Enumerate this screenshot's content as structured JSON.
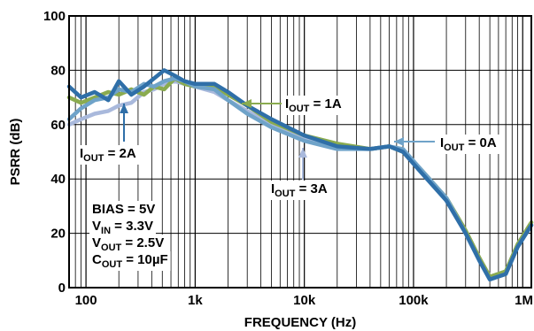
{
  "chart_data": {
    "type": "line",
    "xlabel": "FREQUENCY (Hz)",
    "ylabel": "PSRR (dB)",
    "xscale": "log",
    "xlim": [
      70,
      1200000
    ],
    "ylim": [
      0,
      100
    ],
    "grid": true,
    "x_ticks": [
      {
        "value": 100,
        "label": "100"
      },
      {
        "value": 1000,
        "label": "1k"
      },
      {
        "value": 10000,
        "label": "10k"
      },
      {
        "value": 100000,
        "label": "100k"
      },
      {
        "value": 1000000,
        "label": "1M"
      }
    ],
    "y_ticks": [
      {
        "value": 0,
        "label": "0"
      },
      {
        "value": 20,
        "label": "20"
      },
      {
        "value": 40,
        "label": "40"
      },
      {
        "value": 60,
        "label": "60"
      },
      {
        "value": 80,
        "label": "80"
      },
      {
        "value": 100,
        "label": "100"
      }
    ],
    "series": [
      {
        "name": "IOUT = 0A",
        "color": "#6fa3c9",
        "x": [
          70,
          90,
          120,
          160,
          200,
          260,
          340,
          420,
          520,
          650,
          800,
          1000,
          1500,
          2000,
          3000,
          5000,
          10000,
          20000,
          40000,
          60000,
          80000,
          120000,
          200000,
          300000,
          400000,
          500000,
          700000,
          900000,
          1200000
        ],
        "y": [
          62,
          66,
          69,
          70,
          73,
          72,
          75,
          74,
          76,
          77,
          76,
          74,
          73,
          69,
          64,
          59,
          54,
          51,
          51,
          52,
          51,
          43,
          33,
          20,
          10,
          3,
          5,
          15,
          23
        ]
      },
      {
        "name": "IOUT = 1A",
        "color": "#8aab4f",
        "x": [
          70,
          90,
          120,
          160,
          200,
          260,
          340,
          420,
          520,
          650,
          800,
          1000,
          1500,
          2000,
          3000,
          5000,
          10000,
          20000,
          40000,
          60000,
          80000,
          120000,
          200000,
          300000,
          400000,
          500000,
          700000,
          900000,
          1200000
        ],
        "y": [
          70,
          68,
          70,
          72,
          71,
          73,
          71,
          74,
          73,
          77,
          75,
          74,
          74,
          71,
          67,
          61,
          56,
          53,
          51,
          52,
          50,
          43,
          33,
          21,
          11,
          4,
          6,
          16,
          24
        ]
      },
      {
        "name": "IOUT = 2A",
        "color": "#2f6fa8",
        "x": [
          70,
          90,
          120,
          160,
          200,
          260,
          340,
          420,
          520,
          650,
          800,
          1000,
          1500,
          2000,
          3000,
          5000,
          10000,
          20000,
          40000,
          60000,
          80000,
          120000,
          200000,
          300000,
          400000,
          500000,
          700000,
          900000,
          1200000
        ],
        "y": [
          74,
          70,
          72,
          69,
          76,
          71,
          74,
          77,
          80,
          78,
          76,
          75,
          75,
          72,
          67,
          62,
          56,
          52,
          51,
          52,
          50,
          42,
          32,
          20,
          10,
          3,
          5,
          15,
          23
        ]
      },
      {
        "name": "IOUT = 3A",
        "color": "#a9b9dc",
        "x": [
          70,
          90,
          120,
          160,
          200,
          260,
          340,
          420,
          520,
          650,
          800,
          1000,
          1500,
          2000,
          3000,
          5000,
          10000,
          20000,
          40000,
          60000,
          80000,
          120000,
          200000,
          300000,
          400000,
          500000,
          700000,
          900000,
          1200000
        ],
        "y": [
          60,
          62,
          64,
          65,
          67,
          68,
          72,
          73,
          75,
          76,
          75,
          74,
          72,
          69,
          65,
          60,
          55,
          52,
          51,
          52,
          50,
          43,
          33,
          21,
          11,
          4,
          6,
          16,
          24
        ]
      }
    ],
    "annotations": [
      {
        "main": "I",
        "sub": "OUT",
        "rest": " = 1A",
        "series": "IOUT = 1A"
      },
      {
        "main": "I",
        "sub": "OUT",
        "rest": " = 2A",
        "series": "IOUT = 2A"
      },
      {
        "main": "I",
        "sub": "OUT",
        "rest": " = 0A",
        "series": "IOUT = 0A"
      },
      {
        "main": "I",
        "sub": "OUT",
        "rest": " = 3A",
        "series": "IOUT = 3A"
      }
    ],
    "conditions": [
      {
        "main": "BIAS",
        "sub": "",
        "rest": " = 5V"
      },
      {
        "main": "V",
        "sub": "IN",
        "rest": " = 3.3V"
      },
      {
        "main": "V",
        "sub": "OUT",
        "rest": " = 2.5V"
      },
      {
        "main": "C",
        "sub": "OUT",
        "rest": " = 10µF"
      }
    ]
  }
}
